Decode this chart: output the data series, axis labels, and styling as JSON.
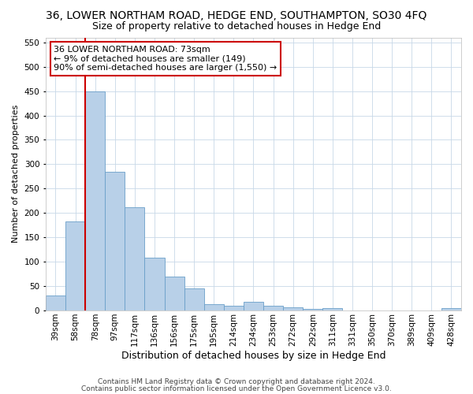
{
  "title": "36, LOWER NORTHAM ROAD, HEDGE END, SOUTHAMPTON, SO30 4FQ",
  "subtitle": "Size of property relative to detached houses in Hedge End",
  "xlabel": "Distribution of detached houses by size in Hedge End",
  "ylabel": "Number of detached properties",
  "categories": [
    "39sqm",
    "58sqm",
    "78sqm",
    "97sqm",
    "117sqm",
    "136sqm",
    "156sqm",
    "175sqm",
    "195sqm",
    "214sqm",
    "234sqm",
    "253sqm",
    "272sqm",
    "292sqm",
    "311sqm",
    "331sqm",
    "350sqm",
    "370sqm",
    "389sqm",
    "409sqm",
    "428sqm"
  ],
  "values": [
    30,
    183,
    450,
    285,
    212,
    108,
    70,
    45,
    13,
    10,
    18,
    10,
    6,
    4,
    5,
    0,
    0,
    0,
    0,
    0,
    5
  ],
  "bar_color": "#b8d0e8",
  "bar_edge_color": "#6a9fc8",
  "vline_color": "#cc0000",
  "vline_position": 1.5,
  "annotation_text": "36 LOWER NORTHAM ROAD: 73sqm\n← 9% of detached houses are smaller (149)\n90% of semi-detached houses are larger (1,550) →",
  "annotation_box_color": "#ffffff",
  "annotation_box_edge": "#cc0000",
  "ylim": [
    0,
    560
  ],
  "yticks": [
    0,
    50,
    100,
    150,
    200,
    250,
    300,
    350,
    400,
    450,
    500,
    550
  ],
  "footer1": "Contains HM Land Registry data © Crown copyright and database right 2024.",
  "footer2": "Contains public sector information licensed under the Open Government Licence v3.0.",
  "background_color": "#ffffff",
  "grid_color": "#c8d8e8",
  "title_fontsize": 10,
  "subtitle_fontsize": 9,
  "xlabel_fontsize": 9,
  "ylabel_fontsize": 8,
  "tick_fontsize": 7.5,
  "annot_fontsize": 8,
  "footer_fontsize": 6.5
}
